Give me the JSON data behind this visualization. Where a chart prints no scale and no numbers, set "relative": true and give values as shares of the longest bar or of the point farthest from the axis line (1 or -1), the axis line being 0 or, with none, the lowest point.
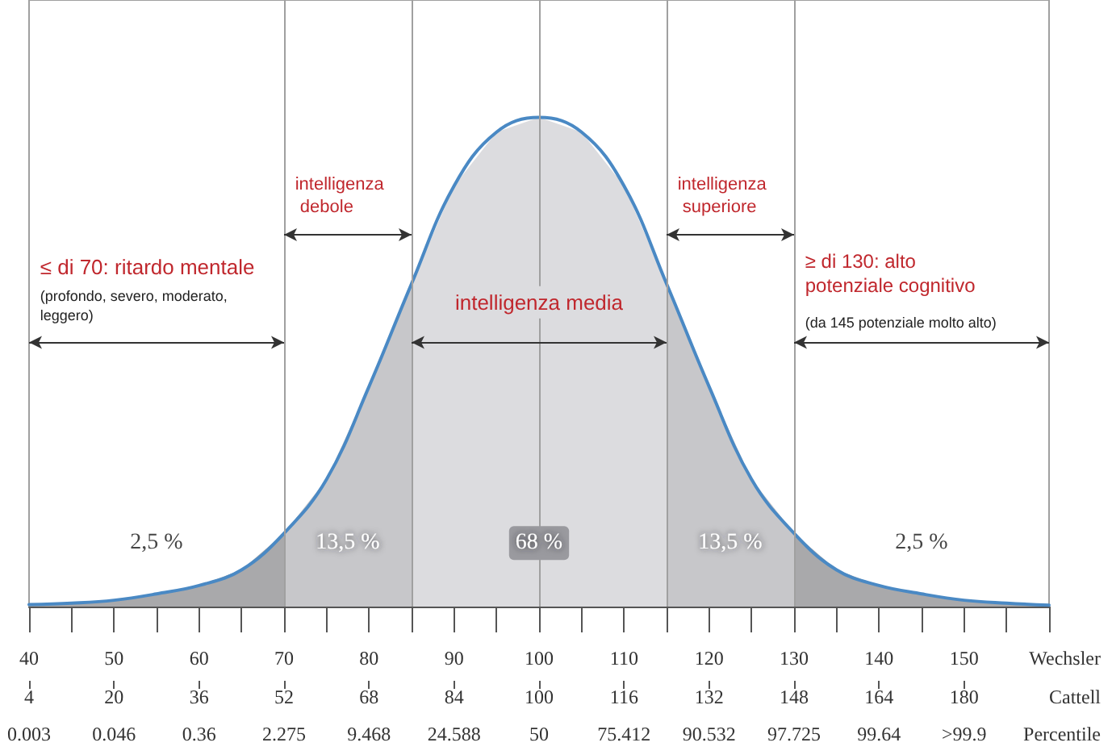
{
  "chart_data": {
    "type": "area",
    "relative": true,
    "marker": "none",
    "grid": false,
    "xlabel": "Wechsler",
    "x2label": "Cattell",
    "xlim": [
      40,
      160
    ],
    "x2lim": [
      4,
      196
    ],
    "xticks": [
      40,
      50,
      60,
      70,
      80,
      90,
      100,
      110,
      120,
      130,
      140,
      150
    ],
    "x2ticks": [
      4,
      20,
      36,
      52,
      68,
      84,
      100,
      116,
      132,
      148,
      164,
      180
    ],
    "series": [
      {
        "color": "#a9a9ab",
        "x": [
          40,
          45,
          50,
          55,
          60,
          65,
          70
        ],
        "values": [
          0.004,
          0.007,
          0.013,
          0.026,
          0.043,
          0.075,
          0.15
        ]
      },
      {
        "color": "#c7c7ca",
        "x": [
          70,
          75,
          80,
          85
        ],
        "values": [
          0.15,
          0.26,
          0.45,
          0.66
        ]
      },
      {
        "color": "#dcdcdf",
        "x": [
          85,
          90,
          95,
          100,
          105,
          110,
          115
        ],
        "values": [
          0.66,
          0.86,
          0.97,
          1,
          0.97,
          0.86,
          0.66
        ]
      },
      {
        "color": "#c7c7ca",
        "x": [
          115,
          120,
          125,
          130
        ],
        "values": [
          0.66,
          0.45,
          0.26,
          0.15
        ]
      },
      {
        "color": "#a9a9ab",
        "x": [
          130,
          135,
          140,
          145,
          150,
          155,
          160
        ],
        "values": [
          0.15,
          0.075,
          0.043,
          0.026,
          0.013,
          0.007,
          0.003
        ]
      },
      {
        "type": "line",
        "color": "#4a89c4",
        "x": [
          40,
          45,
          50,
          55,
          60,
          65,
          70,
          75,
          80,
          85,
          90,
          95,
          100,
          105,
          110,
          115,
          120,
          125,
          130,
          135,
          140,
          145,
          150,
          155,
          160
        ],
        "values": [
          0.004,
          0.007,
          0.013,
          0.026,
          0.043,
          0.075,
          0.15,
          0.26,
          0.45,
          0.66,
          0.86,
          0.97,
          1,
          0.97,
          0.86,
          0.66,
          0.45,
          0.26,
          0.15,
          0.075,
          0.043,
          0.026,
          0.013,
          0.007,
          0.003
        ]
      }
    ],
    "ref_lines": [
      {
        "axis": "x",
        "value": 70,
        "color": "#a0a0a0"
      },
      {
        "axis": "x",
        "value": 85,
        "color": "#a0a0a0"
      },
      {
        "axis": "x",
        "value": 100,
        "color": "#a0a0a0"
      },
      {
        "axis": "x",
        "value": 115,
        "color": "#a0a0a0"
      },
      {
        "axis": "x",
        "value": 130,
        "color": "#a0a0a0"
      }
    ],
    "annotations": [
      "≤ di 70: ritardo mentale",
      "(profondo, severo, moderato, leggero)",
      "intelligenza debole",
      "intelligenza media",
      "intelligenza superiore",
      "≥ di 130: alto potenziale cognitivo",
      "(da 145 potenziale molto alto)",
      "2,5 %",
      "13,5 %",
      "68 %",
      "13,5 %",
      "2,5 %",
      "0.003",
      "0.046",
      "0.36",
      "2.275",
      "9.468",
      "24.588",
      "50",
      "75.412",
      "90.532",
      "97.725",
      "99.64",
      ">99.9",
      "Percentile"
    ]
  }
}
